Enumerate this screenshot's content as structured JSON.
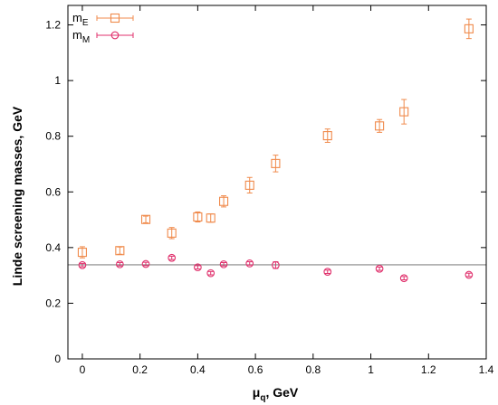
{
  "chart_data": {
    "type": "scatter",
    "xlabel_main": "μ",
    "xlabel_sub": "q",
    "xlabel_rest": ", GeV",
    "ylabel": "Linde screening masses, GeV",
    "xlim": [
      -0.05,
      1.4
    ],
    "ylim": [
      0,
      1.27
    ],
    "xticks": [
      0,
      0.2,
      0.4,
      0.6,
      0.8,
      1,
      1.2,
      1.4
    ],
    "xtick_labels": [
      "0",
      "0.2",
      "0.4",
      "0.6",
      "0.8",
      "1",
      "1.2",
      "1.4"
    ],
    "yticks": [
      0,
      0.2,
      0.4,
      0.6,
      0.8,
      1,
      1.2
    ],
    "ytick_labels": [
      "0",
      "0.2",
      "0.4",
      "0.6",
      "0.8",
      "1",
      "1.2"
    ],
    "reference_line": {
      "y": 0.338,
      "color": "#888888"
    },
    "legend_position": "top-left",
    "series": [
      {
        "legend_main": "m",
        "legend_sub": "E",
        "marker": "square",
        "color": "#f08a4b",
        "x": [
          0,
          0.13,
          0.22,
          0.31,
          0.4,
          0.445,
          0.49,
          0.58,
          0.67,
          0.85,
          1.03,
          1.115,
          1.34
        ],
        "y": [
          0.383,
          0.389,
          0.501,
          0.452,
          0.51,
          0.506,
          0.566,
          0.624,
          0.702,
          0.802,
          0.837,
          0.888,
          1.186
        ],
        "err": [
          0.02,
          0.013,
          0.012,
          0.02,
          0.018,
          0.015,
          0.02,
          0.028,
          0.03,
          0.024,
          0.023,
          0.044,
          0.035
        ]
      },
      {
        "legend_main": "m",
        "legend_sub": "M",
        "marker": "circle",
        "color": "#e0306c",
        "x": [
          0,
          0.13,
          0.22,
          0.31,
          0.4,
          0.445,
          0.49,
          0.58,
          0.67,
          0.85,
          1.03,
          1.115,
          1.34
        ],
        "y": [
          0.337,
          0.34,
          0.341,
          0.363,
          0.329,
          0.308,
          0.34,
          0.343,
          0.337,
          0.313,
          0.324,
          0.29,
          0.302
        ],
        "err": [
          0.006,
          0.006,
          0.006,
          0.006,
          0.006,
          0.006,
          0.006,
          0.006,
          0.012,
          0.006,
          0.006,
          0.006,
          0.006
        ]
      }
    ]
  }
}
